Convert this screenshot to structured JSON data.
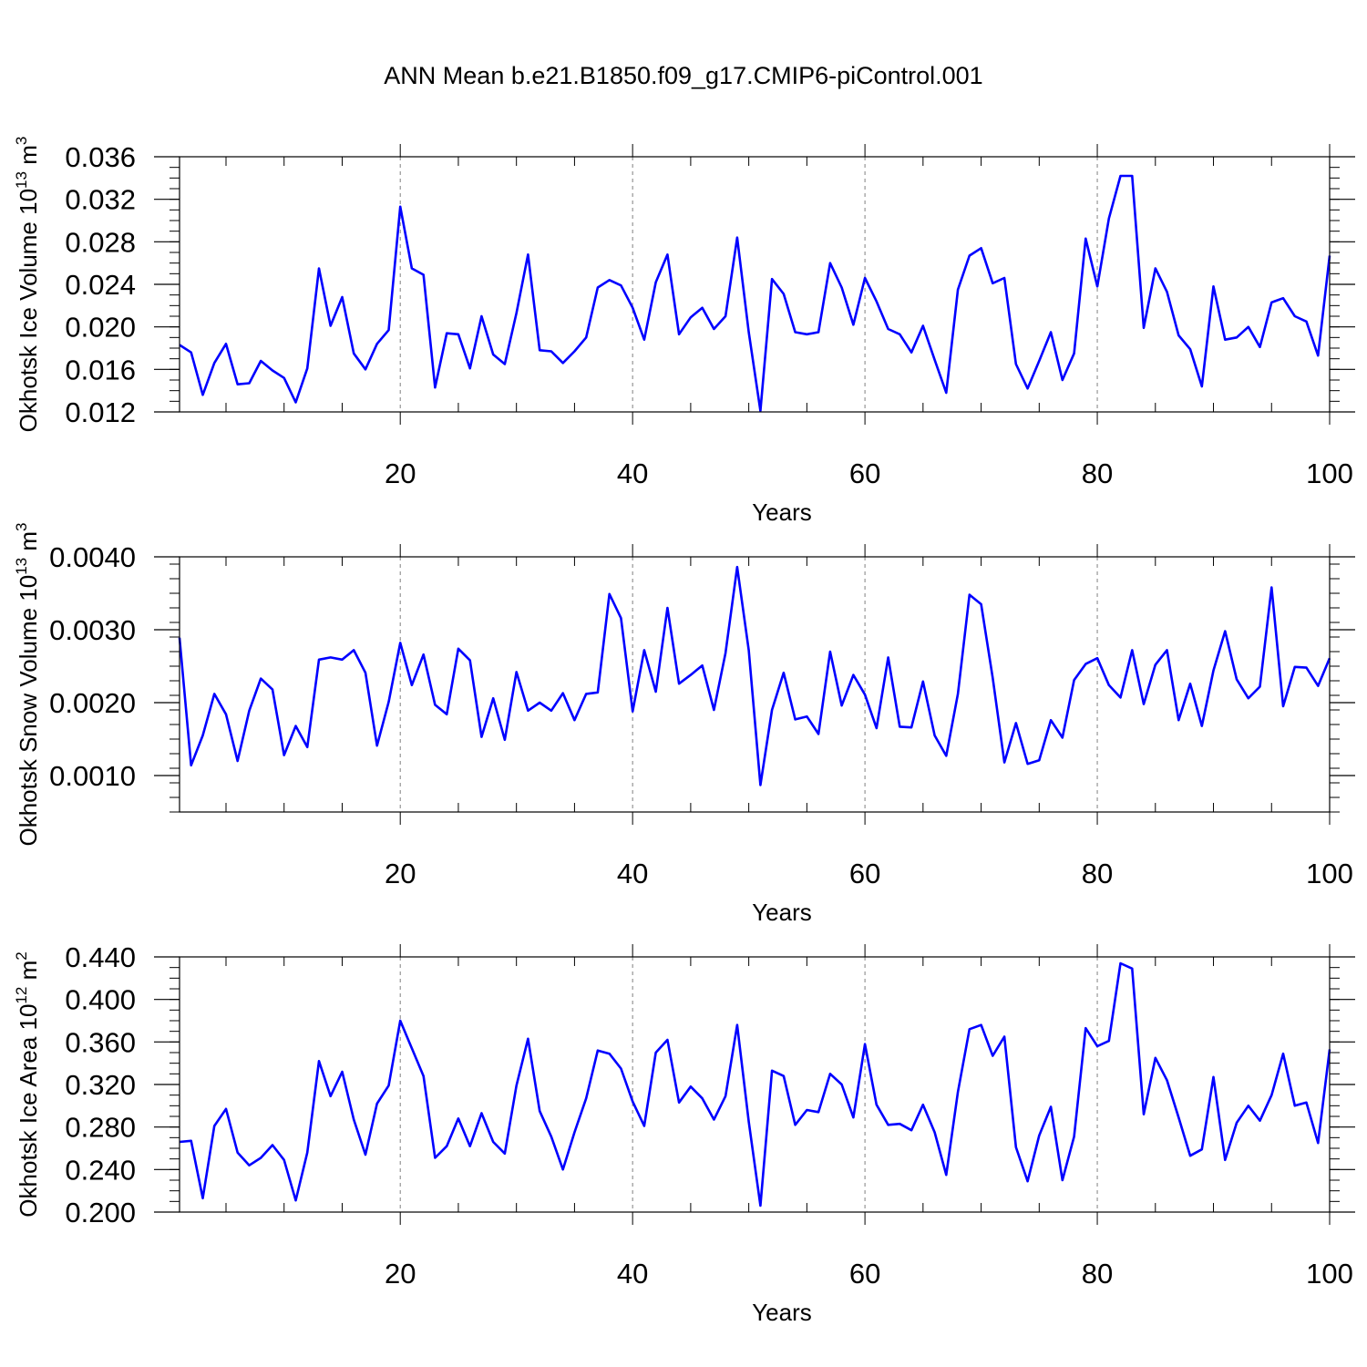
{
  "title": "ANN Mean b.e21.B1850.f09_g17.CMIP6-piControl.001",
  "colors": {
    "line": "#0000ff",
    "axes": "#000000",
    "grid": "#808080"
  },
  "chart_data": [
    {
      "type": "line",
      "xlabel": "Years",
      "ylabel_main": "Okhotsk Ice Volume 10",
      "ylabel_sup": "13",
      "ylabel_unit": " m",
      "ylabel_unit_sup": "3",
      "xlim": [
        1,
        100
      ],
      "ylim": [
        0.012,
        0.036
      ],
      "xticks": [
        20,
        40,
        60,
        80,
        100
      ],
      "xtick_labels": [
        "20",
        "40",
        "60",
        "80",
        "100"
      ],
      "yticks": [
        0.012,
        0.016,
        0.02,
        0.024,
        0.028,
        0.032,
        0.036
      ],
      "ytick_labels": [
        "0.012",
        "0.016",
        "0.020",
        "0.024",
        "0.028",
        "0.032",
        "0.036"
      ],
      "ymin_step": 0.001,
      "grid_x": [
        20,
        40,
        60,
        80
      ],
      "x_start": 1,
      "values": [
        0.0183,
        0.0176,
        0.0136,
        0.0166,
        0.0184,
        0.0146,
        0.0147,
        0.0168,
        0.0159,
        0.0152,
        0.0129,
        0.0161,
        0.0255,
        0.0201,
        0.0228,
        0.0175,
        0.016,
        0.0184,
        0.0197,
        0.0313,
        0.0255,
        0.0249,
        0.0143,
        0.0194,
        0.0193,
        0.0161,
        0.021,
        0.0174,
        0.0165,
        0.0213,
        0.0268,
        0.0178,
        0.0177,
        0.0166,
        0.0177,
        0.019,
        0.0237,
        0.0244,
        0.0239,
        0.0218,
        0.0188,
        0.0242,
        0.0268,
        0.0193,
        0.0209,
        0.0218,
        0.0198,
        0.021,
        0.0284,
        0.0195,
        0.0121,
        0.0245,
        0.0231,
        0.0195,
        0.0193,
        0.0195,
        0.026,
        0.0237,
        0.0202,
        0.0246,
        0.0224,
        0.0198,
        0.0193,
        0.0176,
        0.0201,
        0.0169,
        0.0138,
        0.0235,
        0.0267,
        0.0274,
        0.0241,
        0.0246,
        0.0165,
        0.0142,
        0.0168,
        0.0195,
        0.015,
        0.0175,
        0.0283,
        0.0238,
        0.0302,
        0.0342,
        0.0342,
        0.0199,
        0.0255,
        0.0233,
        0.0192,
        0.0179,
        0.0144,
        0.0238,
        0.0188,
        0.019,
        0.02,
        0.0181,
        0.0223,
        0.0227,
        0.021,
        0.0205,
        0.0173,
        0.0267
      ]
    },
    {
      "type": "line",
      "xlabel": "Years",
      "ylabel_main": "Okhotsk Snow Volume 10",
      "ylabel_sup": "13",
      "ylabel_unit": " m",
      "ylabel_unit_sup": "3",
      "xlim": [
        1,
        100
      ],
      "ylim": [
        0.0005,
        0.004
      ],
      "xticks": [
        20,
        40,
        60,
        80,
        100
      ],
      "xtick_labels": [
        "20",
        "40",
        "60",
        "80",
        "100"
      ],
      "yticks": [
        0.001,
        0.002,
        0.003,
        0.004
      ],
      "ytick_labels": [
        "0.0010",
        "0.0020",
        "0.0030",
        "0.0040"
      ],
      "ymin_step": 0.0002,
      "grid_x": [
        20,
        40,
        60,
        80
      ],
      "x_start": 1,
      "values": [
        0.00289,
        0.00114,
        0.00155,
        0.00212,
        0.00184,
        0.0012,
        0.00189,
        0.00233,
        0.00218,
        0.00128,
        0.00168,
        0.00139,
        0.00259,
        0.00262,
        0.00259,
        0.00272,
        0.00241,
        0.00141,
        0.00201,
        0.00282,
        0.00224,
        0.00266,
        0.00197,
        0.00184,
        0.00274,
        0.00258,
        0.00153,
        0.00206,
        0.00149,
        0.00242,
        0.00189,
        0.002,
        0.00189,
        0.00213,
        0.00176,
        0.00212,
        0.00214,
        0.00349,
        0.00316,
        0.00188,
        0.00272,
        0.00215,
        0.0033,
        0.00226,
        0.00238,
        0.00251,
        0.0019,
        0.00268,
        0.00386,
        0.00272,
        0.00087,
        0.0019,
        0.00241,
        0.00177,
        0.00181,
        0.00157,
        0.0027,
        0.00196,
        0.00238,
        0.00211,
        0.00165,
        0.00262,
        0.00167,
        0.00166,
        0.00229,
        0.00155,
        0.00127,
        0.00212,
        0.00348,
        0.00335,
        0.00234,
        0.00118,
        0.00172,
        0.00116,
        0.00121,
        0.00176,
        0.00152,
        0.00231,
        0.00253,
        0.00261,
        0.00224,
        0.00207,
        0.00272,
        0.00198,
        0.00252,
        0.00272,
        0.00176,
        0.00226,
        0.00168,
        0.00244,
        0.00298,
        0.00232,
        0.00206,
        0.00222,
        0.00358,
        0.00195,
        0.00249,
        0.00248,
        0.00223,
        0.00261
      ]
    },
    {
      "type": "line",
      "xlabel": "Years",
      "ylabel_main": "Okhotsk Ice Area 10",
      "ylabel_sup": "12",
      "ylabel_unit": " m",
      "ylabel_unit_sup": "2",
      "xlim": [
        1,
        100
      ],
      "ylim": [
        0.2,
        0.44
      ],
      "xticks": [
        20,
        40,
        60,
        80,
        100
      ],
      "xtick_labels": [
        "20",
        "40",
        "60",
        "80",
        "100"
      ],
      "yticks": [
        0.2,
        0.24,
        0.28,
        0.32,
        0.36,
        0.4,
        0.44
      ],
      "ytick_labels": [
        "0.200",
        "0.240",
        "0.280",
        "0.320",
        "0.360",
        "0.400",
        "0.440"
      ],
      "ymin_step": 0.01,
      "grid_x": [
        20,
        40,
        60,
        80
      ],
      "x_start": 1,
      "values": [
        0.266,
        0.267,
        0.213,
        0.281,
        0.297,
        0.256,
        0.244,
        0.251,
        0.263,
        0.249,
        0.211,
        0.256,
        0.342,
        0.309,
        0.332,
        0.287,
        0.254,
        0.302,
        0.319,
        0.38,
        0.354,
        0.328,
        0.251,
        0.262,
        0.288,
        0.262,
        0.293,
        0.266,
        0.255,
        0.319,
        0.363,
        0.295,
        0.271,
        0.24,
        0.275,
        0.307,
        0.352,
        0.349,
        0.335,
        0.304,
        0.281,
        0.35,
        0.362,
        0.303,
        0.318,
        0.307,
        0.287,
        0.309,
        0.376,
        0.285,
        0.206,
        0.333,
        0.328,
        0.282,
        0.296,
        0.294,
        0.33,
        0.32,
        0.289,
        0.358,
        0.301,
        0.282,
        0.283,
        0.277,
        0.301,
        0.275,
        0.235,
        0.313,
        0.372,
        0.376,
        0.347,
        0.365,
        0.261,
        0.229,
        0.272,
        0.299,
        0.23,
        0.271,
        0.373,
        0.356,
        0.361,
        0.434,
        0.429,
        0.292,
        0.345,
        0.324,
        0.289,
        0.253,
        0.259,
        0.327,
        0.249,
        0.284,
        0.3,
        0.286,
        0.31,
        0.349,
        0.3,
        0.303,
        0.265,
        0.353
      ]
    }
  ]
}
